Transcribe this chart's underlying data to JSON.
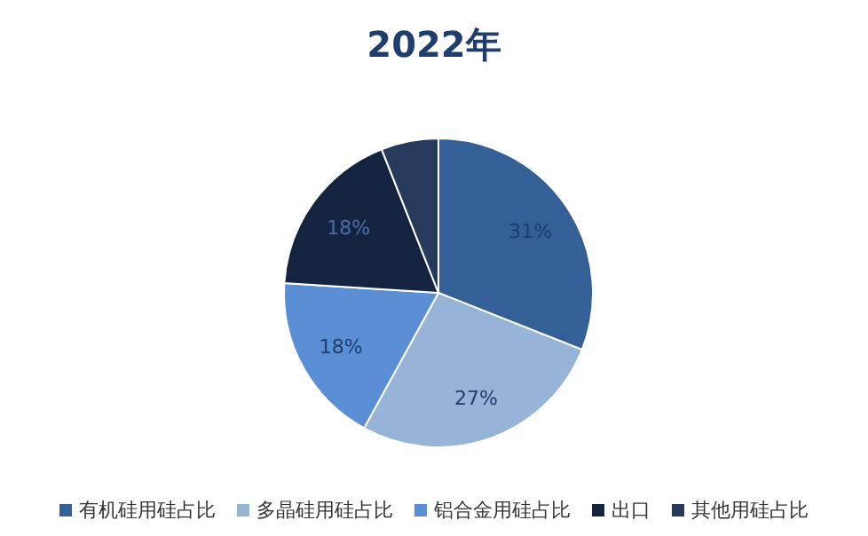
{
  "chart_data": {
    "type": "pie",
    "title": "2022年",
    "categories": [
      "有机硅用硅占比",
      "多晶硅用硅占比",
      "铝合金用硅占比",
      "出口",
      "其他用硅占比"
    ],
    "values": [
      31,
      27,
      18,
      18,
      6
    ],
    "colors": [
      "#345f97",
      "#98b3d8",
      "#5a8fd6",
      "#142440",
      "#263b5c"
    ],
    "value_labels": [
      "31%",
      "27%",
      "18%",
      "18%",
      null
    ],
    "legend": "bottom"
  }
}
